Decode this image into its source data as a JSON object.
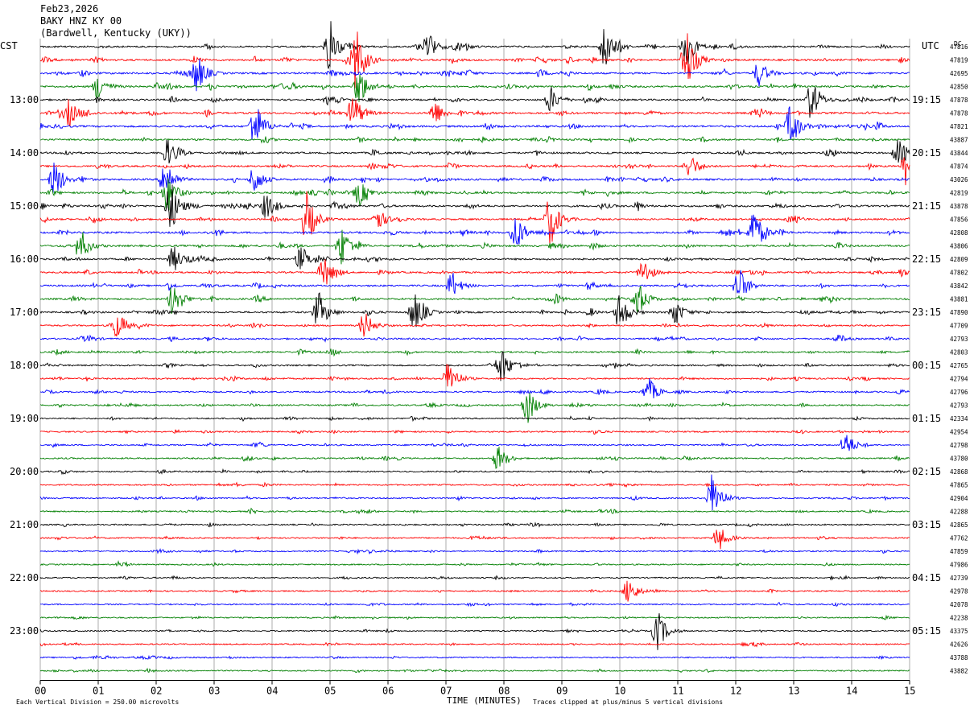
{
  "chart_data": {
    "type": "line",
    "title_lines": [
      "Feb23,2026",
      "BAKY HNZ KY 00",
      "(Bardwell, Kentucky (UKY))"
    ],
    "left_timezone": "CST",
    "right_timezone": "UTC",
    "right_column_header": "DC",
    "xlabel": "TIME (MINUTES)",
    "xlim": [
      0,
      15
    ],
    "x_ticks": [
      "00",
      "01",
      "02",
      "03",
      "04",
      "05",
      "06",
      "07",
      "08",
      "09",
      "10",
      "11",
      "12",
      "13",
      "14",
      "15"
    ],
    "trace_minutes": 15,
    "trace_colors": [
      "#000000",
      "#ff0000",
      "#0000ff",
      "#007f00"
    ],
    "left_hour_labels": [
      "13:00",
      "14:00",
      "15:00",
      "16:00",
      "17:00",
      "18:00",
      "19:00",
      "20:00",
      "21:00",
      "22:00",
      "23:00"
    ],
    "right_hour_labels": [
      "19:15",
      "20:15",
      "21:15",
      "22:15",
      "23:15",
      "00:15",
      "01:15",
      "02:15",
      "03:15",
      "04:15",
      "05:15"
    ],
    "dc_offsets": [
      47816,
      47819,
      42695,
      42850,
      47878,
      47878,
      47821,
      43887,
      43844,
      47874,
      43026,
      42819,
      43878,
      47856,
      42808,
      43806,
      42809,
      47802,
      43842,
      43881,
      47890,
      47709,
      42793,
      42803,
      42765,
      42794,
      42796,
      42793,
      42334,
      42954,
      42798,
      43780,
      42868,
      47865,
      42904,
      42288,
      42865,
      47762,
      47859,
      47986,
      42739,
      42978,
      42078,
      42238,
      43375,
      42626,
      43788,
      43882
    ],
    "activity": [
      0.5,
      0.6,
      0.6,
      0.6,
      0.5,
      0.6,
      0.6,
      0.5,
      0.5,
      0.5,
      0.6,
      0.6,
      0.6,
      0.5,
      0.6,
      0.6,
      0.5,
      0.5,
      0.5,
      0.5,
      0.5,
      0.4,
      0.4,
      0.4,
      0.35,
      0.35,
      0.35,
      0.35,
      0.3,
      0.3,
      0.3,
      0.3,
      0.25,
      0.25,
      0.25,
      0.25,
      0.25,
      0.25,
      0.2,
      0.2,
      0.2,
      0.2,
      0.2,
      0.2,
      0.2,
      0.2,
      0.2,
      0.2
    ],
    "events": [
      {
        "trace": 0,
        "minute": 5.0,
        "amp": 4
      },
      {
        "trace": 0,
        "minute": 6.7,
        "amp": 2
      },
      {
        "trace": 0,
        "minute": 9.75,
        "amp": 4
      },
      {
        "trace": 0,
        "minute": 11.15,
        "amp": 3
      },
      {
        "trace": 1,
        "minute": 5.45,
        "amp": 5
      },
      {
        "trace": 1,
        "minute": 11.15,
        "amp": 5
      },
      {
        "trace": 2,
        "minute": 2.7,
        "amp": 3
      },
      {
        "trace": 2,
        "minute": 12.4,
        "amp": 2
      },
      {
        "trace": 3,
        "minute": 1.0,
        "amp": 2
      },
      {
        "trace": 3,
        "minute": 5.5,
        "amp": 3
      },
      {
        "trace": 4,
        "minute": 8.8,
        "amp": 2
      },
      {
        "trace": 4,
        "minute": 13.3,
        "amp": 3
      },
      {
        "trace": 5,
        "minute": 0.5,
        "amp": 2
      },
      {
        "trace": 5,
        "minute": 5.4,
        "amp": 3
      },
      {
        "trace": 5,
        "minute": 6.8,
        "amp": 2
      },
      {
        "trace": 6,
        "minute": 3.7,
        "amp": 4
      },
      {
        "trace": 6,
        "minute": 12.95,
        "amp": 3
      },
      {
        "trace": 8,
        "minute": 2.2,
        "amp": 2
      },
      {
        "trace": 8,
        "minute": 14.8,
        "amp": 2
      },
      {
        "trace": 9,
        "minute": 11.2,
        "amp": 2
      },
      {
        "trace": 9,
        "minute": 14.95,
        "amp": 3
      },
      {
        "trace": 10,
        "minute": 0.25,
        "amp": 3
      },
      {
        "trace": 10,
        "minute": 2.15,
        "amp": 3
      },
      {
        "trace": 10,
        "minute": 3.7,
        "amp": 2
      },
      {
        "trace": 11,
        "minute": 2.2,
        "amp": 3
      },
      {
        "trace": 11,
        "minute": 5.5,
        "amp": 2
      },
      {
        "trace": 12,
        "minute": 2.25,
        "amp": 4
      },
      {
        "trace": 12,
        "minute": 3.9,
        "amp": 2
      },
      {
        "trace": 13,
        "minute": 4.6,
        "amp": 4
      },
      {
        "trace": 13,
        "minute": 8.8,
        "amp": 4
      },
      {
        "trace": 13,
        "minute": 5.8,
        "amp": 2
      },
      {
        "trace": 14,
        "minute": 8.2,
        "amp": 3
      },
      {
        "trace": 14,
        "minute": 12.3,
        "amp": 4
      },
      {
        "trace": 15,
        "minute": 0.7,
        "amp": 2
      },
      {
        "trace": 15,
        "minute": 5.2,
        "amp": 3
      },
      {
        "trace": 16,
        "minute": 2.3,
        "amp": 2
      },
      {
        "trace": 16,
        "minute": 4.5,
        "amp": 2
      },
      {
        "trace": 17,
        "minute": 4.9,
        "amp": 2
      },
      {
        "trace": 17,
        "minute": 10.4,
        "amp": 2
      },
      {
        "trace": 18,
        "minute": 12.05,
        "amp": 3
      },
      {
        "trace": 18,
        "minute": 7.1,
        "amp": 2
      },
      {
        "trace": 19,
        "minute": 2.3,
        "amp": 3
      },
      {
        "trace": 19,
        "minute": 10.3,
        "amp": 3
      },
      {
        "trace": 20,
        "minute": 4.8,
        "amp": 3
      },
      {
        "trace": 20,
        "minute": 6.45,
        "amp": 3
      },
      {
        "trace": 20,
        "minute": 10.0,
        "amp": 3
      },
      {
        "trace": 20,
        "minute": 10.95,
        "amp": 2
      },
      {
        "trace": 21,
        "minute": 5.6,
        "amp": 2
      },
      {
        "trace": 21,
        "minute": 1.3,
        "amp": 2
      },
      {
        "trace": 24,
        "minute": 7.95,
        "amp": 3
      },
      {
        "trace": 25,
        "minute": 7.05,
        "amp": 3
      },
      {
        "trace": 26,
        "minute": 10.5,
        "amp": 2
      },
      {
        "trace": 27,
        "minute": 8.4,
        "amp": 3
      },
      {
        "trace": 30,
        "minute": 13.9,
        "amp": 2
      },
      {
        "trace": 31,
        "minute": 7.9,
        "amp": 2
      },
      {
        "trace": 34,
        "minute": 11.6,
        "amp": 4
      },
      {
        "trace": 37,
        "minute": 11.7,
        "amp": 2
      },
      {
        "trace": 41,
        "minute": 10.15,
        "amp": 2
      },
      {
        "trace": 44,
        "minute": 10.65,
        "amp": 3
      }
    ],
    "footer_left": "Each Vertical Division =  250.00 microvolts",
    "footer_right": "Traces clipped at plus/minus 5 vertical divisions"
  }
}
